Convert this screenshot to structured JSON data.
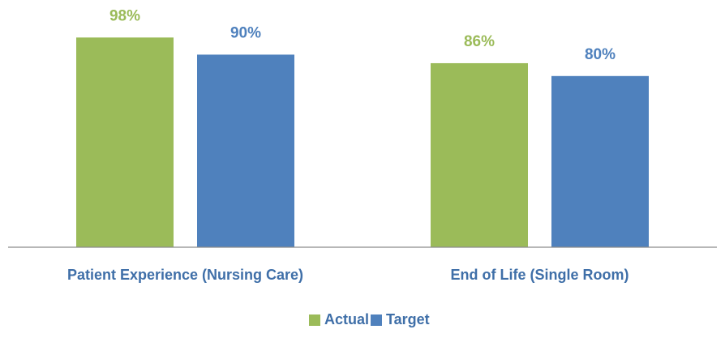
{
  "chart_data": {
    "type": "bar",
    "categories": [
      "Patient Experience (Nursing Care)",
      "End of Life (Single Room)"
    ],
    "series": [
      {
        "name": "Actual",
        "color": "#9bbb59",
        "values": [
          98,
          86
        ],
        "value_labels": [
          "98%",
          "86%"
        ]
      },
      {
        "name": "Target",
        "color": "#4f81bd",
        "values": [
          90,
          80
        ],
        "value_labels": [
          "90%",
          "80%"
        ]
      }
    ],
    "ylim": [
      0,
      100
    ],
    "legend": "bottom",
    "grid": false
  }
}
